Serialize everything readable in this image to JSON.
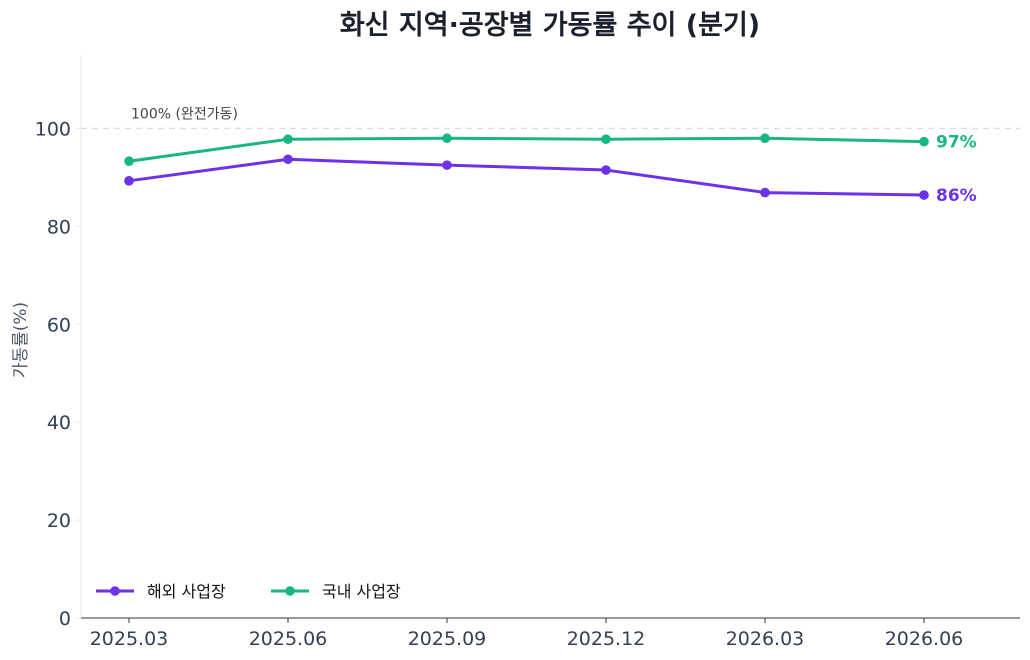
{
  "chart_data": {
    "type": "line",
    "title": "화신 지역·공장별 가동률 추이 (분기)",
    "ylabel": "가동률(%)",
    "xlabel": "",
    "categories": [
      "2025.03",
      "2025.06",
      "2025.09",
      "2025.12",
      "2026.03",
      "2026.06"
    ],
    "ylim": [
      0,
      115
    ],
    "yticks": [
      0,
      20,
      40,
      60,
      80,
      100
    ],
    "grid": false,
    "legend_position": "bottom-left",
    "reference_line": {
      "value": 100,
      "label": "100% (완전가동)"
    },
    "series": [
      {
        "name": "해외 사업장",
        "color": "#6d32e8",
        "values": [
          89.3,
          93.7,
          92.5,
          91.5,
          86.9,
          86.4
        ],
        "end_label": "86%"
      },
      {
        "name": "국내 사업장",
        "color": "#18b585",
        "values": [
          93.3,
          97.8,
          98.0,
          97.8,
          98.0,
          97.3
        ],
        "end_label": "97%"
      }
    ]
  }
}
